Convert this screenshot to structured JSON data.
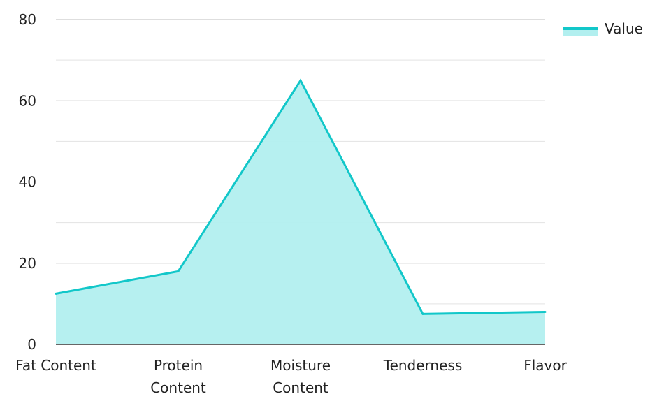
{
  "chart_data": {
    "type": "area",
    "categories": [
      [
        "Fat Content"
      ],
      [
        "Protein",
        "Content"
      ],
      [
        "Moisture",
        "Content"
      ],
      [
        "Tenderness"
      ],
      [
        "Flavor"
      ]
    ],
    "series": [
      {
        "name": "Value",
        "values": [
          12.5,
          18,
          65,
          7.5,
          8
        ]
      }
    ],
    "ylim": [
      0,
      80
    ],
    "yticks": [
      0,
      20,
      40,
      60,
      80
    ],
    "minor_grid_step": 10,
    "grid": true,
    "legend": "top-right",
    "colors": {
      "line": "#12c7c9",
      "fill": "#b2efef",
      "grid_major": "#bdbdbd",
      "grid_minor": "#e3e3e3",
      "axis": "#333333"
    }
  }
}
